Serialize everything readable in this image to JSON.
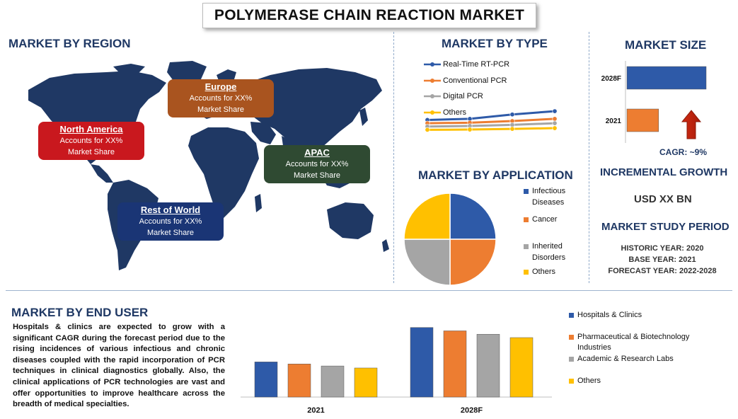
{
  "title": "POLYMERASE CHAIN REACTION MARKET",
  "region": {
    "heading": "MARKET BY REGION",
    "boxes": [
      {
        "name": "North America",
        "text1": "Accounts for XX%",
        "text2": "Market Share",
        "color": "#c9181e"
      },
      {
        "name": "Europe",
        "text1": "Accounts for XX%",
        "text2": "Market Share",
        "color": "#a9541f"
      },
      {
        "name": "APAC",
        "text1": "Accounts for XX%",
        "text2": "Market Share",
        "color": "#2f4a32"
      },
      {
        "name": "Rest of World",
        "text1": "Accounts for XX%",
        "text2": "Market Share",
        "color": "#1a3575"
      }
    ]
  },
  "type_section": {
    "heading": "MARKET BY TYPE"
  },
  "size_section": {
    "heading": "MARKET SIZE",
    "cagr": "CAGR:  ~9%"
  },
  "application_section": {
    "heading": "MARKET BY APPLICATION"
  },
  "incremental": {
    "heading": "INCREMENTAL GROWTH",
    "value": "USD XX BN"
  },
  "study_period": {
    "heading": "MARKET STUDY PERIOD",
    "historic": "HISTORIC YEAR: 2020",
    "base": "BASE YEAR: 2021",
    "forecast": "FORECAST YEAR: 2022-2028"
  },
  "end_user": {
    "heading": "MARKET BY END USER",
    "paragraph": "Hospitals & clinics are expected to grow with a significant CAGR during the forecast period due to the rising incidences of various infectious and chronic diseases coupled with the rapid incorporation of PCR techniques in clinical diagnostics globally. Also, the clinical applications of PCR technologies are vast and offer opportunities to improve healthcare across the breadth of medical specialties."
  },
  "chart_data": [
    {
      "id": "market-by-type",
      "type": "line",
      "x": [
        "",
        "",
        "",
        ""
      ],
      "series": [
        {
          "name": "Real-Time RT-PCR",
          "values": [
            12,
            13,
            17,
            20
          ],
          "color": "#2e5aa8"
        },
        {
          "name": "Conventional PCR",
          "values": [
            9,
            9.5,
            11,
            13
          ],
          "color": "#ed7d31"
        },
        {
          "name": "Digital PCR",
          "values": [
            6,
            6.5,
            7.5,
            9
          ],
          "color": "#a5a5a5"
        },
        {
          "name": "Others",
          "values": [
            3,
            3.2,
            3.8,
            4.5
          ],
          "color": "#ffc000"
        }
      ],
      "ylim": [
        0,
        22
      ]
    },
    {
      "id": "market-size",
      "type": "bar",
      "orientation": "horizontal",
      "categories": [
        "2028F",
        "2021"
      ],
      "values": [
        100,
        40
      ],
      "colors": [
        "#2e5aa8",
        "#ed7d31"
      ],
      "xlim": [
        0,
        100
      ]
    },
    {
      "id": "market-by-application",
      "type": "pie",
      "labels": [
        "Infectious Diseases",
        "Cancer",
        "Inherited Disorders",
        "Others"
      ],
      "values": [
        25,
        25,
        25,
        25
      ],
      "colors": [
        "#2e5aa8",
        "#ed7d31",
        "#a5a5a5",
        "#ffc000"
      ]
    },
    {
      "id": "market-by-end-user",
      "type": "bar",
      "categories": [
        "2021",
        "2028F"
      ],
      "series": [
        {
          "name": "Hospitals & Clinics",
          "values": [
            52,
            103
          ],
          "color": "#2e5aa8"
        },
        {
          "name": "Pharmaceutical & Biotechnology Industries",
          "values": [
            49,
            98
          ],
          "color": "#ed7d31"
        },
        {
          "name": "Academic & Research Labs",
          "values": [
            46,
            93
          ],
          "color": "#a5a5a5"
        },
        {
          "name": "Others",
          "values": [
            43,
            88
          ],
          "color": "#ffc000"
        }
      ],
      "ylim": [
        0,
        110
      ]
    }
  ]
}
